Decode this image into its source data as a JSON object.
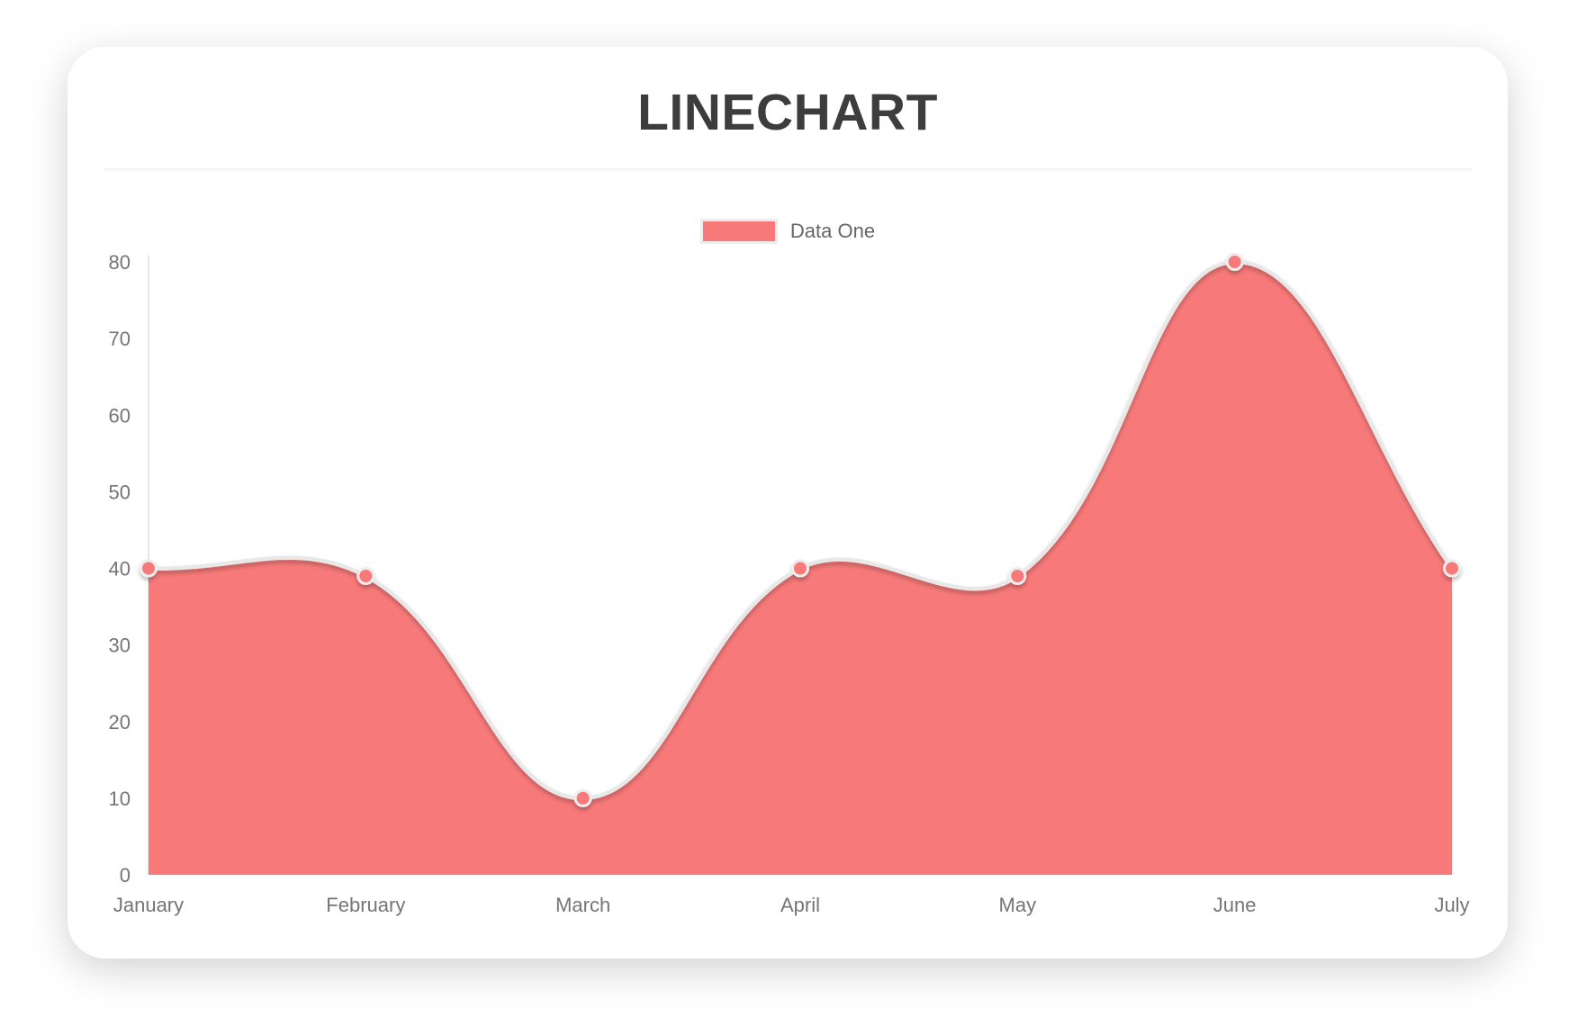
{
  "chart_data": {
    "type": "area",
    "title": "LINECHART",
    "categories": [
      "January",
      "February",
      "March",
      "April",
      "May",
      "June",
      "July"
    ],
    "series": [
      {
        "name": "Data One",
        "values": [
          40,
          39,
          10,
          40,
          39,
          80,
          40
        ]
      }
    ],
    "ylim": [
      0,
      80
    ],
    "y_ticks": [
      0,
      10,
      20,
      30,
      40,
      50,
      60,
      70,
      80
    ],
    "grid": false,
    "legend_position": "top",
    "line_tension": 0.4,
    "colors": {
      "fill": "#f87979",
      "line": "#e8e8e8",
      "point_fill": "#f87979",
      "point_border": "#ededed",
      "axis_line": "#e9e9e9",
      "tick_text": "#757575",
      "title_text": "#3d3d3d",
      "legend_text": "#666666",
      "divider": "#f3f3f3",
      "card_bg": "#ffffff"
    }
  }
}
